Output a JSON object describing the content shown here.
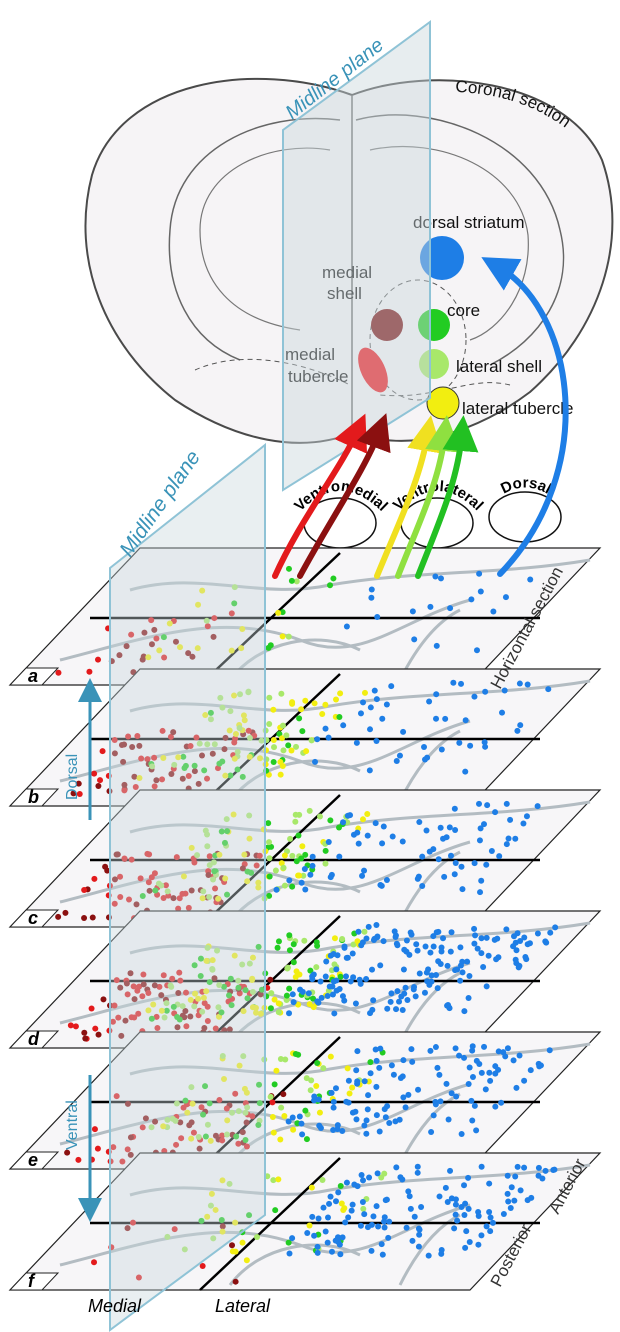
{
  "coronal": {
    "title": "Coronal section",
    "midline": "Midline plane",
    "regions": {
      "dorsal_striatum": "dorsal striatum",
      "medial_shell": [
        "medial",
        "shell"
      ],
      "core": "core",
      "medial_tubercle": [
        "medial",
        "tubercle"
      ],
      "lateral_shell": "lateral shell",
      "lateral_tubercle": "lateral tubercle"
    }
  },
  "pathways": [
    "Ventromedial",
    "Ventrolateral",
    "Dorsal"
  ],
  "horizontal": {
    "title": "Horizontal section",
    "midline": "Midline plane",
    "slices": [
      "a",
      "b",
      "c",
      "d",
      "e",
      "f"
    ],
    "axes": {
      "dorsal": "Dorsal",
      "ventral": "Ventral",
      "anterior": "Anterior",
      "posterior": "Posterior",
      "medial": "Medial",
      "lateral": "Lateral"
    }
  }
}
